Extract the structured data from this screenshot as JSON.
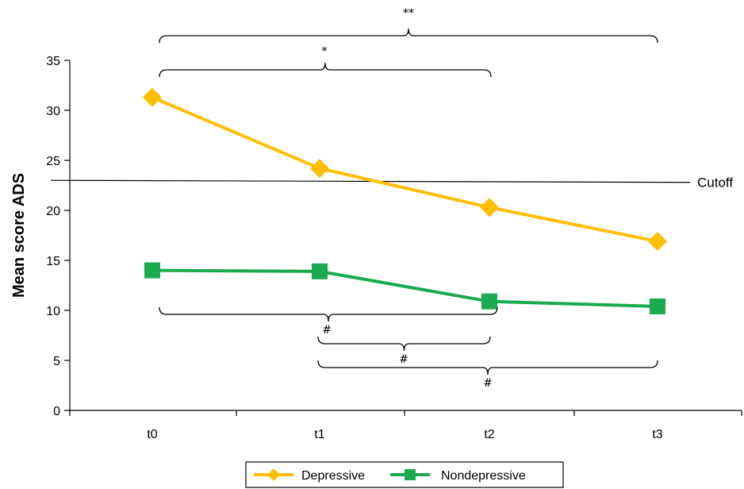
{
  "chart_data": {
    "type": "line",
    "title": "",
    "xlabel": "",
    "ylabel": "Mean score ADS",
    "categories": [
      "t0",
      "t1",
      "t2",
      "t3"
    ],
    "ylim": [
      0,
      35
    ],
    "yticks": [
      0,
      5,
      10,
      15,
      20,
      25,
      30,
      35
    ],
    "grid": false,
    "legend_position": "bottom",
    "series": [
      {
        "name": "Depressive",
        "values": [
          31.3,
          24.2,
          20.3,
          16.9
        ],
        "color": "#FFBF00",
        "marker": "diamond"
      },
      {
        "name": "Nondepressive",
        "values": [
          14.0,
          13.9,
          10.9,
          10.4
        ],
        "color": "#1BAA4E",
        "marker": "square"
      }
    ],
    "reference_lines": [
      {
        "label": "Cutoff",
        "y_start": 23.0,
        "y_end": 22.8
      }
    ],
    "annotations": [
      {
        "series": "Depressive",
        "from": "t0",
        "to": "t3",
        "label": "**"
      },
      {
        "series": "Depressive",
        "from": "t0",
        "to": "t2",
        "label": "*"
      },
      {
        "series": "Nondepressive",
        "from": "t0",
        "to": "t2",
        "label": "#"
      },
      {
        "series": "Nondepressive",
        "from": "t1",
        "to": "t2",
        "label": "#"
      },
      {
        "series": "Nondepressive",
        "from": "t1",
        "to": "t3",
        "label": "#"
      }
    ]
  }
}
